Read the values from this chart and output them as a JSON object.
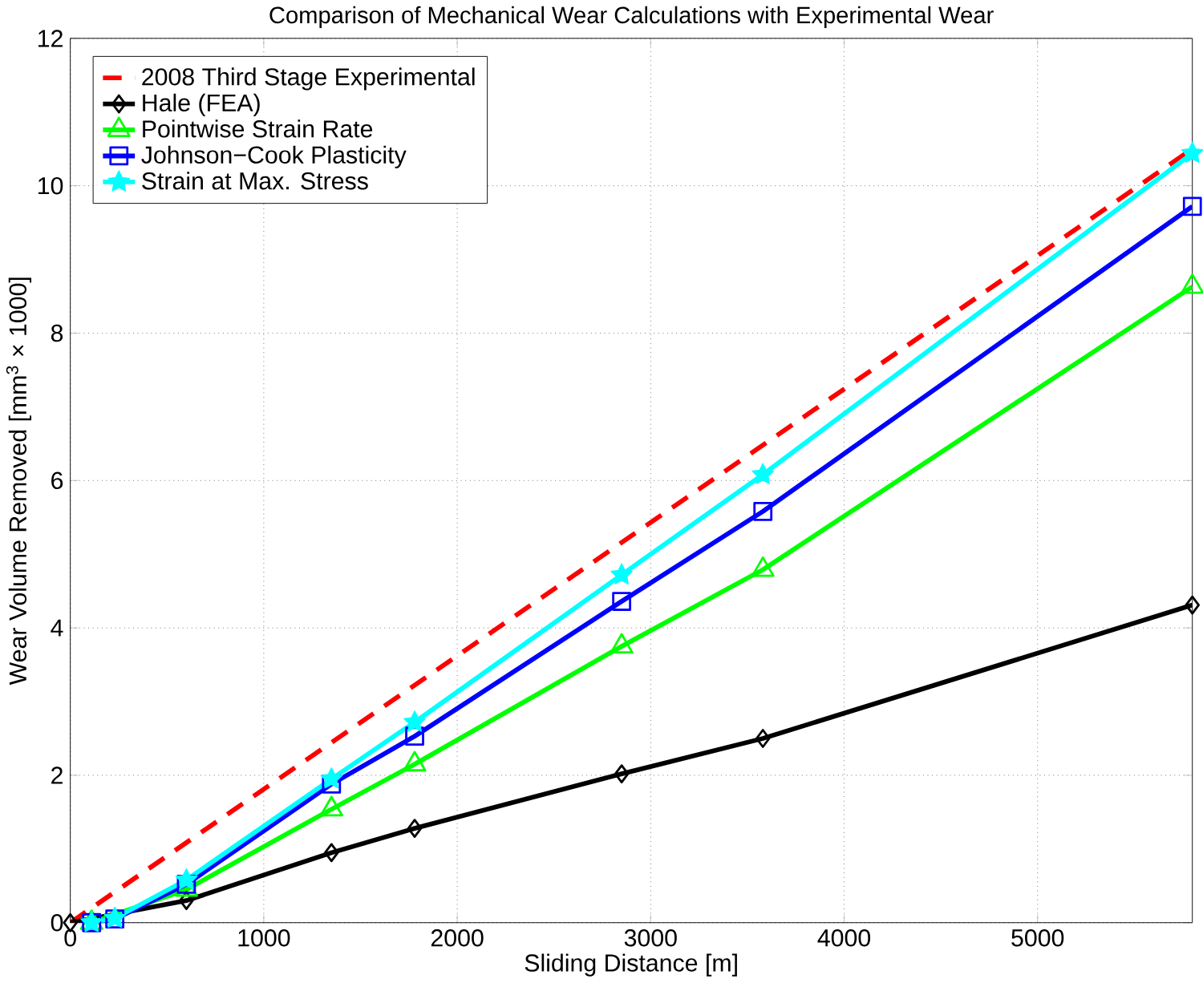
{
  "chart_data": {
    "type": "line",
    "title": "Comparison of Mechanical Wear Calculations with Experimental Wear",
    "xlabel": "Sliding Distance [m]",
    "ylabel": "Wear Volume Removed [mm$^{3}$ × 1000]",
    "xlim": [
      0,
      5800
    ],
    "ylim": [
      0,
      12
    ],
    "xticks": [
      0,
      1000,
      2000,
      3000,
      4000,
      5000
    ],
    "yticks": [
      0,
      2,
      4,
      6,
      8,
      10,
      12
    ],
    "grid": true,
    "legend": "top left",
    "series": [
      {
        "name": "2008 Third Stage Experimental",
        "color": "#ff0000",
        "line_style": "dashed",
        "marker": "none",
        "x": [
          0,
          5800
        ],
        "values": [
          0,
          10.5
        ]
      },
      {
        "name": "Hale (FEA)",
        "color": "#000000",
        "marker": "diamond",
        "x": [
          0,
          600,
          1350,
          1780,
          2850,
          3580,
          5800
        ],
        "values": [
          0,
          0.3,
          0.95,
          1.28,
          2.02,
          2.5,
          4.31
        ]
      },
      {
        "name": "Pointwise Strain Rate",
        "color": "#00ff00",
        "marker": "triangle",
        "x": [
          110,
          230,
          600,
          1350,
          1780,
          2850,
          3580,
          5800
        ],
        "values": [
          0,
          null,
          0.45,
          1.54,
          2.15,
          3.75,
          4.79,
          8.63
        ]
      },
      {
        "name": "Johnson−Cook Plasticity",
        "color": "#0000ff",
        "marker": "square",
        "x": [
          110,
          230,
          600,
          1350,
          1780,
          2850,
          3580,
          5800
        ],
        "values": [
          0,
          0.05,
          0.52,
          1.88,
          2.53,
          4.36,
          5.58,
          9.72
        ]
      },
      {
        "name": "Strain at Max. Stress",
        "color": "#00ffff",
        "marker": "star",
        "x": [
          110,
          230,
          600,
          1350,
          1780,
          2850,
          3580,
          5800
        ],
        "values": [
          0,
          0.06,
          0.58,
          1.95,
          2.72,
          4.72,
          6.08,
          10.44
        ]
      }
    ]
  }
}
